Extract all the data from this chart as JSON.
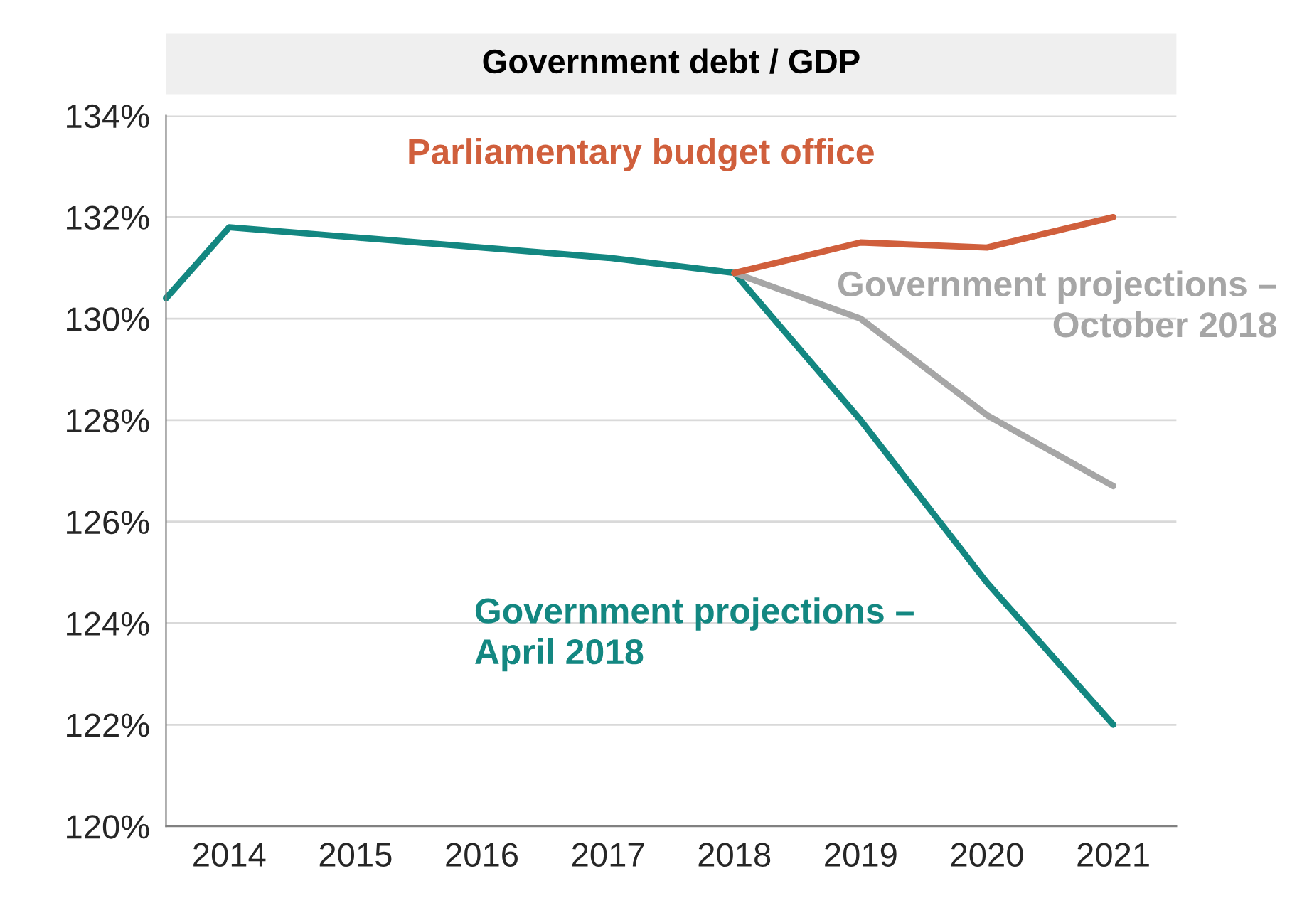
{
  "chart_data": {
    "type": "line",
    "title": "Government debt / GDP",
    "xlim": [
      2013.5,
      2021.5
    ],
    "xticks": [
      2014,
      2015,
      2016,
      2017,
      2018,
      2019,
      2020,
      2021
    ],
    "ylim": [
      120,
      134
    ],
    "yticks": [
      {
        "value": 120,
        "label": "120%"
      },
      {
        "value": 122,
        "label": "122%"
      },
      {
        "value": 124,
        "label": "124%"
      },
      {
        "value": 126,
        "label": "126%"
      },
      {
        "value": 128,
        "label": "128%"
      },
      {
        "value": 130,
        "label": "130%"
      },
      {
        "value": 132,
        "label": "132%"
      },
      {
        "value": 134,
        "label": "134%"
      }
    ],
    "grid": "y",
    "legend": false,
    "marker": "none",
    "line_style": "solid",
    "series": [
      {
        "name": "Government projections – April 2018",
        "color": "#138781",
        "x": [
          2013.5,
          2014,
          2015,
          2016,
          2017,
          2018,
          2019,
          2020,
          2021
        ],
        "values": [
          130.4,
          131.8,
          131.6,
          131.4,
          131.2,
          130.9,
          128.0,
          124.8,
          122.0
        ]
      },
      {
        "name": "Government projections – October 2018",
        "color": "#a6a6a6",
        "x": [
          2018,
          2019,
          2020,
          2021
        ],
        "values": [
          130.9,
          130.0,
          128.1,
          126.7
        ]
      },
      {
        "name": "Parliamentary budget office",
        "color": "#d05f3c",
        "x": [
          2018,
          2019,
          2020,
          2021
        ],
        "values": [
          130.9,
          131.5,
          131.4,
          132.0
        ]
      }
    ]
  }
}
